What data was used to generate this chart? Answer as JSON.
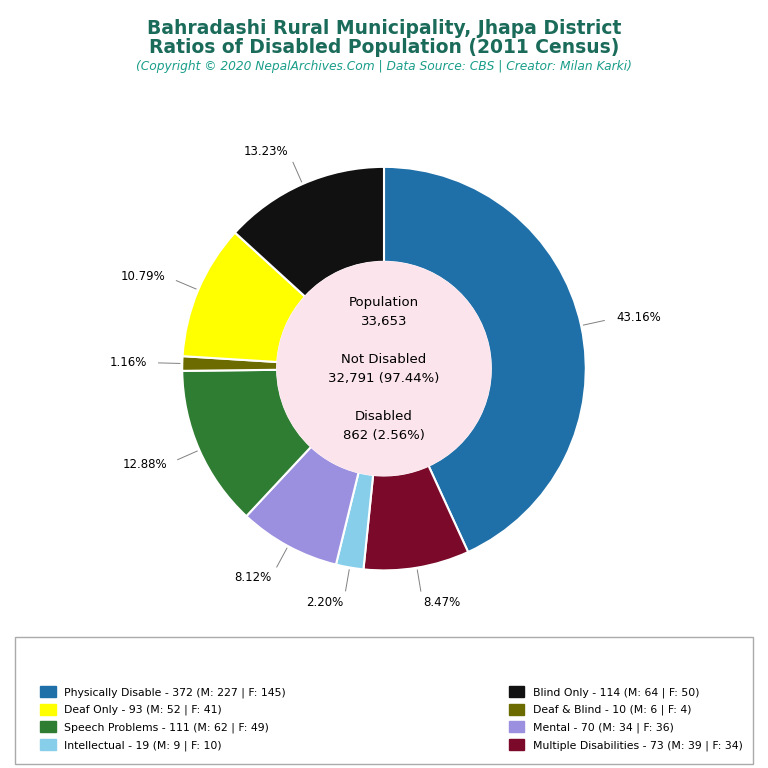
{
  "title_line1": "Bahradashi Rural Municipality, Jhapa District",
  "title_line2": "Ratios of Disabled Population (2011 Census)",
  "subtitle": "(Copyright © 2020 NepalArchives.Com | Data Source: CBS | Creator: Milan Karki)",
  "title_color": "#1a6b5a",
  "subtitle_color": "#1a9e8a",
  "center_bg": "#fce4ec",
  "values_ordered": [
    372,
    73,
    19,
    70,
    111,
    10,
    93,
    114
  ],
  "colors_ordered": [
    "#1f6fa8",
    "#7b0a2a",
    "#87ceeb",
    "#9b8fdf",
    "#2e7d32",
    "#6b6b00",
    "#ffff00",
    "#111111"
  ],
  "pct_strings": [
    "43.16%",
    "8.47%",
    "2.20%",
    "8.12%",
    "12.88%",
    "1.16%",
    "10.79%",
    "13.23%"
  ],
  "legend_entries": [
    {
      "label": "Physically Disable - 372 (M: 227 | F: 145)",
      "color": "#1f6fa8"
    },
    {
      "label": "Deaf Only - 93 (M: 52 | F: 41)",
      "color": "#ffff00"
    },
    {
      "label": "Speech Problems - 111 (M: 62 | F: 49)",
      "color": "#2e7d32"
    },
    {
      "label": "Intellectual - 19 (M: 9 | F: 10)",
      "color": "#87ceeb"
    },
    {
      "label": "Blind Only - 114 (M: 64 | F: 50)",
      "color": "#111111"
    },
    {
      "label": "Deaf & Blind - 10 (M: 6 | F: 4)",
      "color": "#6b6b00"
    },
    {
      "label": "Mental - 70 (M: 34 | F: 36)",
      "color": "#9b8fdf"
    },
    {
      "label": "Multiple Disabilities - 73 (M: 39 | F: 34)",
      "color": "#7b0a2a"
    }
  ]
}
